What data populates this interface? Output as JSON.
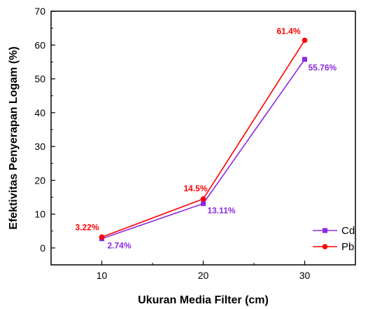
{
  "chart_data": {
    "type": "line",
    "title": "",
    "xlabel": "Ukuran Media Filter (cm)",
    "ylabel": "Efektivitas Penyerapan Logam (%)",
    "x": [
      10,
      20,
      30
    ],
    "xlim": [
      5,
      35
    ],
    "ylim": [
      -5,
      70
    ],
    "xticks": [
      10,
      20,
      30
    ],
    "yticks": [
      0,
      10,
      20,
      30,
      40,
      50,
      60,
      70
    ],
    "grid": false,
    "legend_position": "bottom-right",
    "series": [
      {
        "name": "Cd",
        "values": [
          2.74,
          13.11,
          55.76
        ],
        "labels": [
          "2.74%",
          "13.11%",
          "55.76%"
        ],
        "color": "#8a2be2",
        "marker": "square"
      },
      {
        "name": "Pb",
        "values": [
          3.22,
          14.5,
          61.4
        ],
        "labels": [
          "3.22%",
          "14.5%",
          "61.4%"
        ],
        "color": "#ff0000",
        "marker": "circle"
      }
    ]
  }
}
